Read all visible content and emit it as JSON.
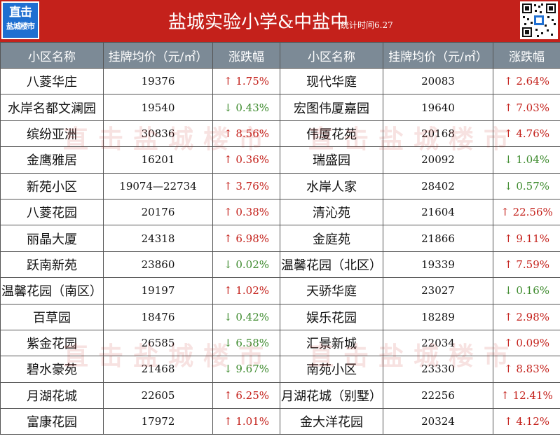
{
  "header": {
    "logo_line1": "直击",
    "logo_line2": "盐城楼市",
    "title": "盐城实验小学&中盐中",
    "stat_date": "统计时间6.27"
  },
  "watermark": "直击盐城楼市",
  "columns": [
    "小区名称",
    "挂牌均价（元/㎡）",
    "涨跌幅"
  ],
  "rows": [
    [
      {
        "name": "八菱华庄",
        "price": "19376",
        "dir": "up",
        "pct": "1.75%"
      },
      {
        "name": "现代华庭",
        "price": "20083",
        "dir": "up",
        "pct": "2.64%"
      }
    ],
    [
      {
        "name": "水岸名都文澜园",
        "price": "19540",
        "dir": "down",
        "pct": "0.43%"
      },
      {
        "name": "宏图伟厦嘉园",
        "price": "19640",
        "dir": "up",
        "pct": "7.03%"
      }
    ],
    [
      {
        "name": "缤纷亚洲",
        "price": "30836",
        "dir": "up",
        "pct": "8.56%"
      },
      {
        "name": "伟厦花苑",
        "price": "20168",
        "dir": "up",
        "pct": "4.76%"
      }
    ],
    [
      {
        "name": "金鹰雅居",
        "price": "16201",
        "dir": "up",
        "pct": "0.36%"
      },
      {
        "name": "瑞盛园",
        "price": "20092",
        "dir": "down",
        "pct": "1.04%"
      }
    ],
    [
      {
        "name": "新苑小区",
        "price": "19074—22734",
        "dir": "up",
        "pct": "3.76%"
      },
      {
        "name": "水岸人家",
        "price": "28402",
        "dir": "down",
        "pct": "0.57%"
      }
    ],
    [
      {
        "name": "八菱花园",
        "price": "20176",
        "dir": "up",
        "pct": "0.38%"
      },
      {
        "name": "清沁苑",
        "price": "21604",
        "dir": "up",
        "pct": "22.56%"
      }
    ],
    [
      {
        "name": "丽晶大厦",
        "price": "24318",
        "dir": "up",
        "pct": "6.98%"
      },
      {
        "name": "金庭苑",
        "price": "21866",
        "dir": "up",
        "pct": "9.11%"
      }
    ],
    [
      {
        "name": "跃南新苑",
        "price": "23860",
        "dir": "down",
        "pct": "0.02%"
      },
      {
        "name": "温馨花园（北区）",
        "price": "19339",
        "dir": "up",
        "pct": "7.59%"
      }
    ],
    [
      {
        "name": "温馨花园（南区）",
        "price": "19197",
        "dir": "up",
        "pct": "1.02%"
      },
      {
        "name": "天骄华庭",
        "price": "23027",
        "dir": "down",
        "pct": "0.16%"
      }
    ],
    [
      {
        "name": "百草园",
        "price": "18476",
        "dir": "down",
        "pct": "0.42%"
      },
      {
        "name": "娱乐花园",
        "price": "18289",
        "dir": "up",
        "pct": "2.98%"
      }
    ],
    [
      {
        "name": "紫金花园",
        "price": "26585",
        "dir": "down",
        "pct": "6.58%"
      },
      {
        "name": "汇景新城",
        "price": "22034",
        "dir": "up",
        "pct": "0.09%"
      }
    ],
    [
      {
        "name": "碧水豪苑",
        "price": "21468",
        "dir": "down",
        "pct": "9.67%"
      },
      {
        "name": "南苑小区",
        "price": "23330",
        "dir": "up",
        "pct": "8.83%"
      }
    ],
    [
      {
        "name": "月湖花城",
        "price": "22605",
        "dir": "up",
        "pct": "6.25%"
      },
      {
        "name": "月湖花城（别墅）",
        "price": "22256",
        "dir": "up",
        "pct": "12.41%"
      }
    ],
    [
      {
        "name": "富康花园",
        "price": "17972",
        "dir": "up",
        "pct": "1.01%"
      },
      {
        "name": "金大洋花园",
        "price": "20324",
        "dir": "up",
        "pct": "4.12%"
      }
    ]
  ],
  "colors": {
    "header_red": "#c4211b",
    "up": "#c4211b",
    "down": "#3e8b2e",
    "table_header": "#7c8a96"
  },
  "icons": {
    "up": "arrow-up-icon",
    "down": "arrow-down-icon",
    "qr": "qr-code-icon"
  }
}
